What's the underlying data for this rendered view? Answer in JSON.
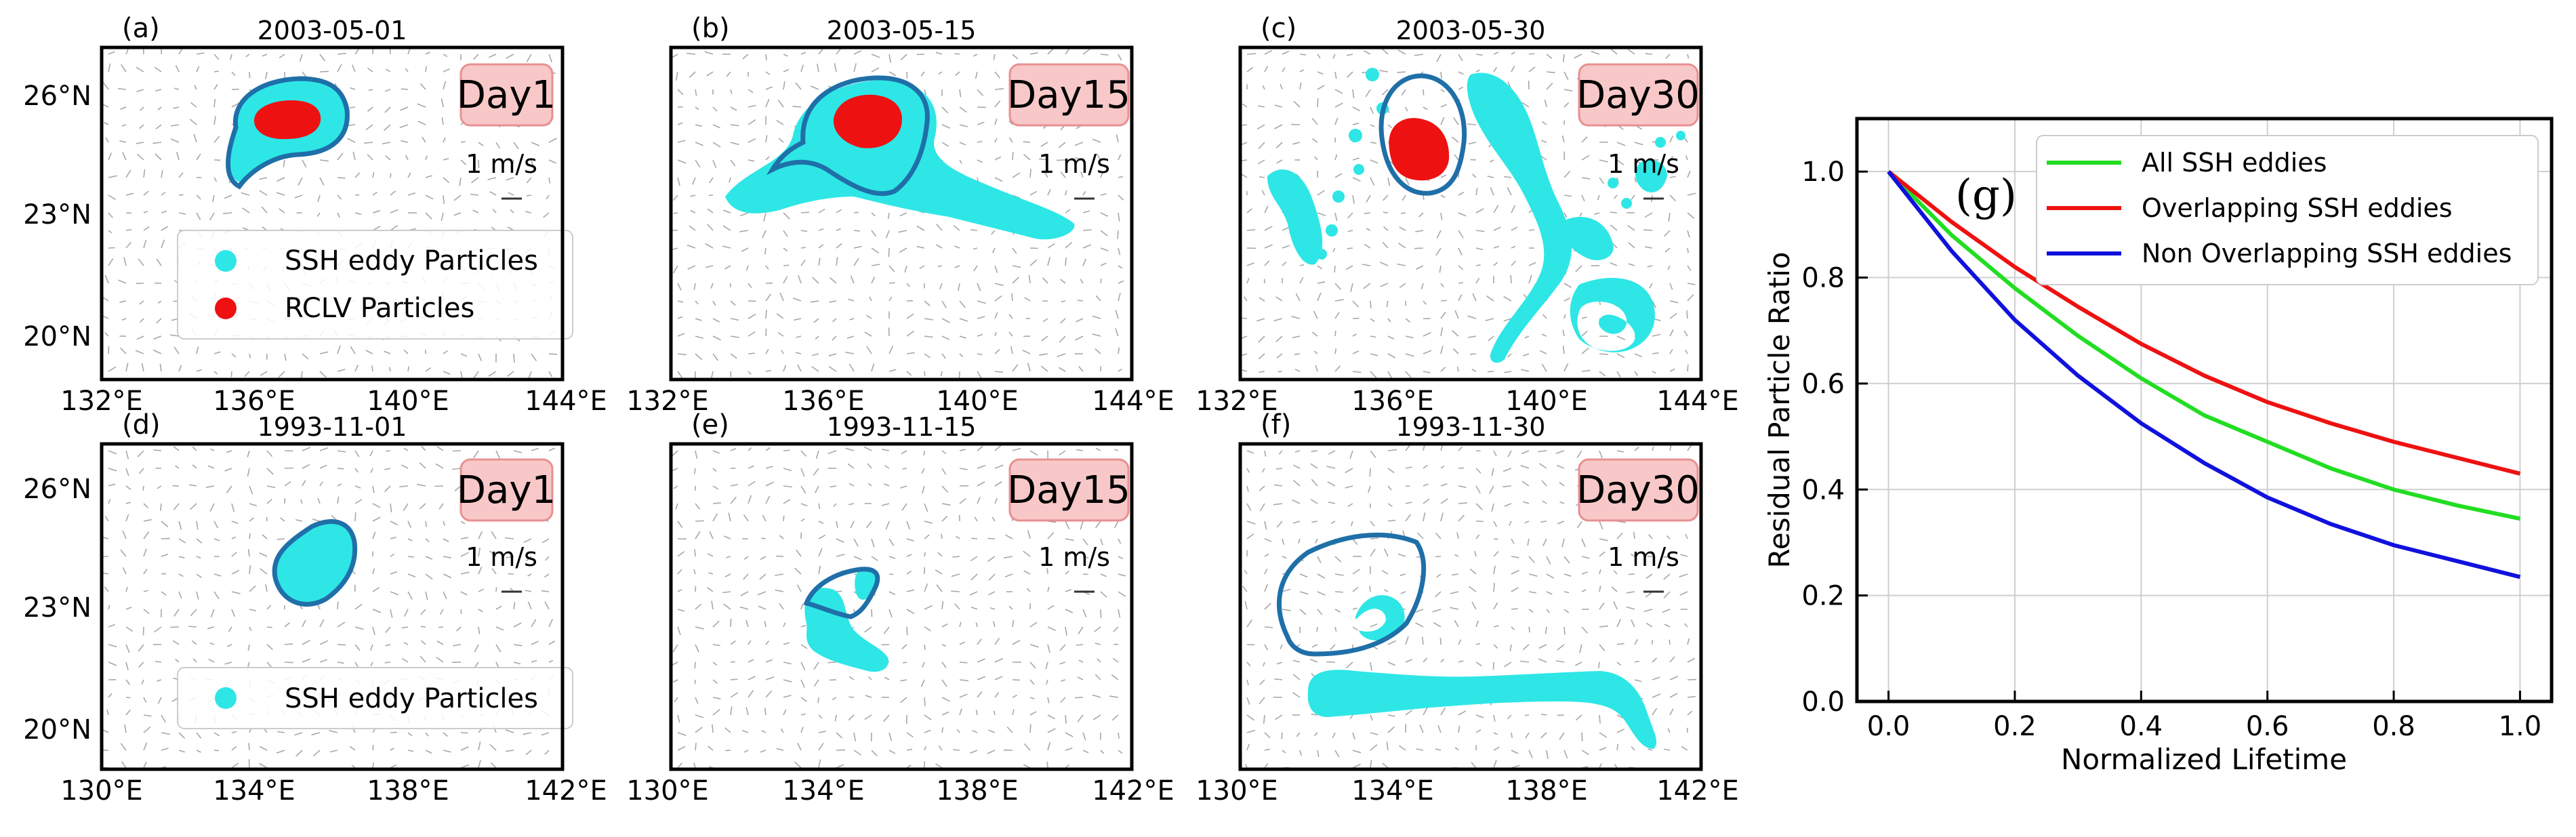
{
  "colors": {
    "ssh_particles": "#2ee6e6",
    "rclv_particles": "#ee1111",
    "contour": "#1f6fa8",
    "day_box_fill": "#f8c8c8",
    "day_box_edge": "#e89090",
    "all_ssh": "#22dd22",
    "overlapping": "#ee1111",
    "non_overlapping": "#1111dd"
  },
  "maps": {
    "top_row": {
      "y_ticks": [
        "26°N",
        "23°N",
        "20°N"
      ],
      "x_ticks": [
        "132°E",
        "136°E",
        "140°E",
        "144°E"
      ],
      "panels": [
        {
          "letter": "(a)",
          "date": "2003-05-01",
          "day": "Day1",
          "scale": "1 m/s"
        },
        {
          "letter": "(b)",
          "date": "2003-05-15",
          "day": "Day15",
          "scale": "1 m/s"
        },
        {
          "letter": "(c)",
          "date": "2003-05-30",
          "day": "Day30",
          "scale": "1 m/s"
        }
      ],
      "legend": [
        "SSH eddy Particles",
        "RCLV Particles"
      ]
    },
    "bottom_row": {
      "y_ticks": [
        "26°N",
        "23°N",
        "20°N"
      ],
      "x_ticks": [
        "130°E",
        "134°E",
        "138°E",
        "142°E"
      ],
      "panels": [
        {
          "letter": "(d)",
          "date": "1993-11-01",
          "day": "Day1",
          "scale": "1 m/s"
        },
        {
          "letter": "(e)",
          "date": "1993-11-15",
          "day": "Day15",
          "scale": "1 m/s"
        },
        {
          "letter": "(f)",
          "date": "1993-11-30",
          "day": "Day30",
          "scale": "1 m/s"
        }
      ],
      "legend": [
        "SSH eddy Particles"
      ]
    }
  },
  "chart_data": [
    {
      "type": "line",
      "panel": "(g)",
      "xlabel": "Normalized Lifetime",
      "ylabel": "Residual Particle Ratio",
      "xlim": [
        -0.05,
        1.05
      ],
      "ylim": [
        0.0,
        1.1
      ],
      "x_ticks": [
        "0.0",
        "0.2",
        "0.4",
        "0.6",
        "0.8",
        "1.0"
      ],
      "y_ticks": [
        "0.0",
        "0.2",
        "0.4",
        "0.6",
        "0.8",
        "1.0"
      ],
      "grid": true,
      "legend_position": "top-right",
      "x": [
        0.0,
        0.1,
        0.2,
        0.3,
        0.4,
        0.5,
        0.6,
        0.7,
        0.8,
        0.9,
        1.0
      ],
      "series": [
        {
          "name": "All SSH eddies",
          "color": "#22dd22",
          "values": [
            1.0,
            0.88,
            0.78,
            0.69,
            0.61,
            0.54,
            0.49,
            0.44,
            0.4,
            0.37,
            0.345
          ]
        },
        {
          "name": "Overlapping SSH eddies",
          "color": "#ee1111",
          "values": [
            1.0,
            0.905,
            0.82,
            0.745,
            0.675,
            0.615,
            0.565,
            0.525,
            0.49,
            0.46,
            0.43
          ]
        },
        {
          "name": "Non Overlapping SSH eddies",
          "color": "#1111dd",
          "values": [
            1.0,
            0.85,
            0.72,
            0.615,
            0.525,
            0.45,
            0.385,
            0.335,
            0.295,
            0.265,
            0.235
          ]
        }
      ]
    }
  ]
}
